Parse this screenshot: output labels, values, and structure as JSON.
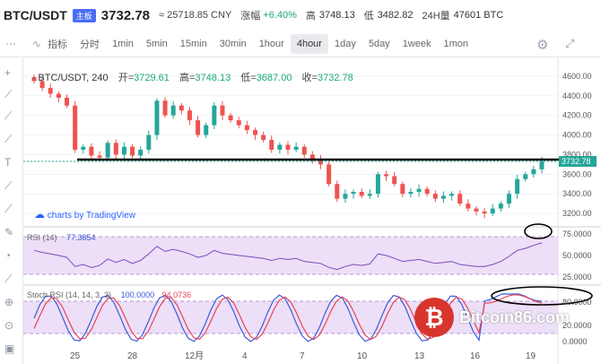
{
  "header": {
    "pair": "BTC/USDT",
    "badge": "主板",
    "price": "3732.78",
    "cny": "≈ 25718.85 CNY",
    "change_label": "涨幅",
    "change_value": "+6.40%",
    "high_label": "高",
    "high_value": "3748.13",
    "low_label": "低",
    "low_value": "3482.82",
    "vol_label": "24H量",
    "vol_value": "47601 BTC"
  },
  "toolbar": {
    "indicator": "指标",
    "timeshare": "分时",
    "intervals": [
      "1min",
      "5min",
      "15min",
      "30min",
      "1hour",
      "4hour",
      "1day",
      "5day",
      "1week",
      "1mon"
    ],
    "active_interval": "4hour"
  },
  "legend": {
    "symbol": "BTC/USDT, 240",
    "open_label": "开=",
    "open": "3729.61",
    "high_label": "高=",
    "high": "3748.13",
    "low_label": "低=",
    "low": "3687.00",
    "close_label": "收=",
    "close": "3732.78"
  },
  "branding": {
    "tradingview": "charts by TradingView",
    "watermark": "Bitcoin86.com"
  },
  "price_axis": {
    "ticks": [
      "4600.00",
      "4400.00",
      "4200.00",
      "4000.00",
      "3800.00",
      "3600.00",
      "3400.00",
      "3200.00"
    ],
    "current": "3732.78",
    "min": 3100,
    "max": 4700
  },
  "rsi": {
    "label": "RSI (14)",
    "value": "77.3854",
    "ticks": [
      "75.0000",
      "50.0000",
      "25.0000"
    ],
    "upper": 70,
    "lower": 30
  },
  "stoch": {
    "label": "Stoch RSI (14, 14, 3, 3)",
    "k": "100.0000",
    "d": "94.0736",
    "ticks": [
      "80.0000",
      "20.0000",
      "0.0000"
    ]
  },
  "time_axis": {
    "labels": [
      "25",
      "28",
      "12月",
      "4",
      "7",
      "10",
      "13",
      "16",
      "19"
    ]
  },
  "colors": {
    "up": "#26a69a",
    "down": "#ef5350",
    "rsi_line": "#7b4bbf",
    "stoch_k": "#3b5bdb",
    "stoch_d": "#e8435a",
    "active_bg": "#e8eaee",
    "accent": "#4a6cf7"
  },
  "chart_data": {
    "type": "candlestick",
    "ylim": [
      3100,
      4700
    ],
    "support_level": 3745,
    "current_price": 3732.78,
    "candles_close_approx": [
      4550,
      4480,
      4420,
      4380,
      4300,
      3850,
      3880,
      3790,
      3770,
      3920,
      3800,
      3880,
      3790,
      3850,
      4000,
      4350,
      4200,
      4300,
      4250,
      4150,
      4000,
      4100,
      4300,
      4200,
      4150,
      4100,
      4050,
      4000,
      3950,
      3850,
      3900,
      3850,
      3880,
      3800,
      3750,
      3700,
      3500,
      3350,
      3400,
      3420,
      3380,
      3400,
      3600,
      3580,
      3500,
      3400,
      3420,
      3450,
      3400,
      3350,
      3380,
      3400,
      3300,
      3250,
      3220,
      3200,
      3250,
      3300,
      3400,
      3550,
      3600,
      3650,
      3732.78
    ]
  }
}
